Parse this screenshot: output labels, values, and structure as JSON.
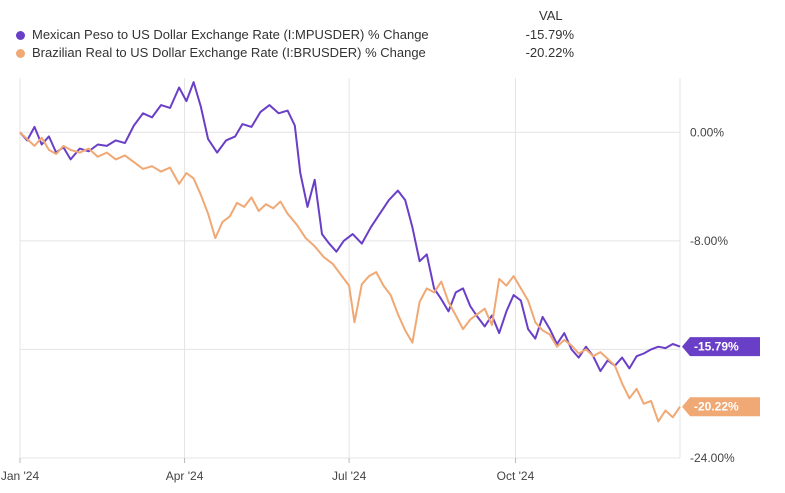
{
  "legend": {
    "value_header": "VAL",
    "items": [
      {
        "name": "Mexican Peso to US Dollar Exchange Rate (I:MPUSDER) % Change",
        "value": "-15.79%",
        "color": "#6a3fc7"
      },
      {
        "name": "Brazilian Real to US Dollar Exchange Rate (I:BRUSDER) % Change",
        "value": "-20.22%",
        "color": "#f0a874"
      }
    ]
  },
  "chart_data": {
    "type": "line",
    "x_ticks": [
      {
        "date": "2024-01-01",
        "label": "Jan '24"
      },
      {
        "date": "2024-04-01",
        "label": "Apr '24"
      },
      {
        "date": "2024-07-01",
        "label": "Jul '24"
      },
      {
        "date": "2024-10-01",
        "label": "Oct '24"
      }
    ],
    "y_ticks": [
      {
        "value": 0,
        "label": "0.00%"
      },
      {
        "value": -8,
        "label": "-8.00%"
      },
      {
        "value": -16,
        "label": "-16.00%"
      },
      {
        "value": -24,
        "label": "-24.00%"
      }
    ],
    "x_range": [
      "2024-01-01",
      "2024-12-31"
    ],
    "ylim": [
      -24,
      4
    ],
    "grid": true,
    "legend_position": "top-left",
    "series": [
      {
        "name": "Mexican Peso to US Dollar Exchange Rate (I:MPUSDER) % Change",
        "color": "#6a3fc7",
        "end_label": "-15.79%",
        "points": [
          [
            "2024-01-01",
            0
          ],
          [
            "2024-01-05",
            -0.6
          ],
          [
            "2024-01-09",
            0.4
          ],
          [
            "2024-01-13",
            -0.9
          ],
          [
            "2024-01-17",
            -0.3
          ],
          [
            "2024-01-21",
            -1.5
          ],
          [
            "2024-01-25",
            -1.1
          ],
          [
            "2024-01-29",
            -2.0
          ],
          [
            "2024-02-03",
            -1.2
          ],
          [
            "2024-02-08",
            -1.4
          ],
          [
            "2024-02-13",
            -0.9
          ],
          [
            "2024-02-18",
            -1.0
          ],
          [
            "2024-02-23",
            -0.6
          ],
          [
            "2024-02-28",
            -0.8
          ],
          [
            "2024-03-04",
            0.5
          ],
          [
            "2024-03-09",
            1.4
          ],
          [
            "2024-03-14",
            1.1
          ],
          [
            "2024-03-19",
            2.0
          ],
          [
            "2024-03-24",
            1.8
          ],
          [
            "2024-03-29",
            3.3
          ],
          [
            "2024-04-02",
            2.3
          ],
          [
            "2024-04-06",
            3.7
          ],
          [
            "2024-04-10",
            1.9
          ],
          [
            "2024-04-14",
            -0.5
          ],
          [
            "2024-04-19",
            -1.5
          ],
          [
            "2024-04-24",
            -0.6
          ],
          [
            "2024-04-29",
            -0.3
          ],
          [
            "2024-05-03",
            0.6
          ],
          [
            "2024-05-08",
            0.4
          ],
          [
            "2024-05-13",
            1.5
          ],
          [
            "2024-05-18",
            2.0
          ],
          [
            "2024-05-23",
            1.4
          ],
          [
            "2024-05-28",
            1.6
          ],
          [
            "2024-06-01",
            0.5
          ],
          [
            "2024-06-04",
            -3.0
          ],
          [
            "2024-06-08",
            -5.5
          ],
          [
            "2024-06-12",
            -3.5
          ],
          [
            "2024-06-16",
            -7.5
          ],
          [
            "2024-06-20",
            -8.2
          ],
          [
            "2024-06-24",
            -8.8
          ],
          [
            "2024-06-28",
            -8.0
          ],
          [
            "2024-07-03",
            -7.5
          ],
          [
            "2024-07-08",
            -8.2
          ],
          [
            "2024-07-13",
            -7.0
          ],
          [
            "2024-07-18",
            -6.0
          ],
          [
            "2024-07-23",
            -5.0
          ],
          [
            "2024-07-28",
            -4.3
          ],
          [
            "2024-08-01",
            -5.0
          ],
          [
            "2024-08-05",
            -7.0
          ],
          [
            "2024-08-09",
            -9.5
          ],
          [
            "2024-08-13",
            -9.0
          ],
          [
            "2024-08-17",
            -11.5
          ],
          [
            "2024-08-21",
            -12.3
          ],
          [
            "2024-08-25",
            -13.2
          ],
          [
            "2024-08-29",
            -11.8
          ],
          [
            "2024-09-02",
            -11.5
          ],
          [
            "2024-09-06",
            -12.8
          ],
          [
            "2024-09-10",
            -13.6
          ],
          [
            "2024-09-14",
            -14.3
          ],
          [
            "2024-09-18",
            -13.5
          ],
          [
            "2024-09-22",
            -14.8
          ],
          [
            "2024-09-26",
            -13.2
          ],
          [
            "2024-09-30",
            -12.0
          ],
          [
            "2024-10-04",
            -12.4
          ],
          [
            "2024-10-08",
            -14.5
          ],
          [
            "2024-10-12",
            -15.2
          ],
          [
            "2024-10-16",
            -13.6
          ],
          [
            "2024-10-20",
            -14.5
          ],
          [
            "2024-10-24",
            -15.6
          ],
          [
            "2024-10-28",
            -14.8
          ],
          [
            "2024-11-01",
            -16.0
          ],
          [
            "2024-11-05",
            -16.6
          ],
          [
            "2024-11-09",
            -15.8
          ],
          [
            "2024-11-13",
            -16.5
          ],
          [
            "2024-11-17",
            -17.6
          ],
          [
            "2024-11-21",
            -16.8
          ],
          [
            "2024-11-25",
            -17.2
          ],
          [
            "2024-11-29",
            -16.6
          ],
          [
            "2024-12-03",
            -17.4
          ],
          [
            "2024-12-07",
            -16.5
          ],
          [
            "2024-12-11",
            -16.3
          ],
          [
            "2024-12-15",
            -16.0
          ],
          [
            "2024-12-19",
            -15.8
          ],
          [
            "2024-12-23",
            -15.9
          ],
          [
            "2024-12-27",
            -15.6
          ],
          [
            "2024-12-31",
            -15.79
          ]
        ]
      },
      {
        "name": "Brazilian Real to US Dollar Exchange Rate (I:BRUSDER) % Change",
        "color": "#f0a874",
        "end_label": "-20.22%",
        "points": [
          [
            "2024-01-01",
            0
          ],
          [
            "2024-01-05",
            -0.5
          ],
          [
            "2024-01-09",
            -1.0
          ],
          [
            "2024-01-13",
            -0.4
          ],
          [
            "2024-01-17",
            -1.3
          ],
          [
            "2024-01-21",
            -1.6
          ],
          [
            "2024-01-25",
            -1.0
          ],
          [
            "2024-01-29",
            -1.3
          ],
          [
            "2024-02-03",
            -1.5
          ],
          [
            "2024-02-08",
            -1.2
          ],
          [
            "2024-02-13",
            -1.8
          ],
          [
            "2024-02-18",
            -1.5
          ],
          [
            "2024-02-23",
            -2.0
          ],
          [
            "2024-02-28",
            -1.7
          ],
          [
            "2024-03-04",
            -2.2
          ],
          [
            "2024-03-09",
            -2.7
          ],
          [
            "2024-03-14",
            -2.5
          ],
          [
            "2024-03-19",
            -2.9
          ],
          [
            "2024-03-24",
            -2.6
          ],
          [
            "2024-03-29",
            -3.8
          ],
          [
            "2024-04-02",
            -3.0
          ],
          [
            "2024-04-06",
            -3.4
          ],
          [
            "2024-04-10",
            -4.6
          ],
          [
            "2024-04-14",
            -6.0
          ],
          [
            "2024-04-18",
            -7.8
          ],
          [
            "2024-04-22",
            -6.6
          ],
          [
            "2024-04-26",
            -6.2
          ],
          [
            "2024-04-30",
            -5.2
          ],
          [
            "2024-05-04",
            -5.5
          ],
          [
            "2024-05-08",
            -4.8
          ],
          [
            "2024-05-12",
            -5.8
          ],
          [
            "2024-05-16",
            -5.3
          ],
          [
            "2024-05-20",
            -5.6
          ],
          [
            "2024-05-24",
            -5.1
          ],
          [
            "2024-05-28",
            -6.0
          ],
          [
            "2024-06-02",
            -6.8
          ],
          [
            "2024-06-07",
            -7.8
          ],
          [
            "2024-06-12",
            -8.4
          ],
          [
            "2024-06-17",
            -9.2
          ],
          [
            "2024-06-22",
            -9.7
          ],
          [
            "2024-06-27",
            -10.6
          ],
          [
            "2024-07-01",
            -11.3
          ],
          [
            "2024-07-04",
            -14.0
          ],
          [
            "2024-07-08",
            -11.2
          ],
          [
            "2024-07-12",
            -10.6
          ],
          [
            "2024-07-16",
            -10.3
          ],
          [
            "2024-07-20",
            -11.3
          ],
          [
            "2024-07-24",
            -12.0
          ],
          [
            "2024-07-28",
            -13.4
          ],
          [
            "2024-08-01",
            -14.6
          ],
          [
            "2024-08-05",
            -15.5
          ],
          [
            "2024-08-09",
            -12.5
          ],
          [
            "2024-08-13",
            -11.5
          ],
          [
            "2024-08-17",
            -11.8
          ],
          [
            "2024-08-21",
            -11.0
          ],
          [
            "2024-08-25",
            -12.5
          ],
          [
            "2024-08-29",
            -13.5
          ],
          [
            "2024-09-02",
            -14.5
          ],
          [
            "2024-09-06",
            -13.8
          ],
          [
            "2024-09-10",
            -13.4
          ],
          [
            "2024-09-14",
            -13.0
          ],
          [
            "2024-09-18",
            -14.2
          ],
          [
            "2024-09-22",
            -10.8
          ],
          [
            "2024-09-26",
            -11.3
          ],
          [
            "2024-09-30",
            -10.6
          ],
          [
            "2024-10-04",
            -11.5
          ],
          [
            "2024-10-08",
            -12.4
          ],
          [
            "2024-10-12",
            -14.0
          ],
          [
            "2024-10-16",
            -14.6
          ],
          [
            "2024-10-20",
            -14.9
          ],
          [
            "2024-10-24",
            -15.8
          ],
          [
            "2024-10-28",
            -15.3
          ],
          [
            "2024-11-01",
            -15.7
          ],
          [
            "2024-11-05",
            -16.3
          ],
          [
            "2024-11-09",
            -16.0
          ],
          [
            "2024-11-13",
            -16.5
          ],
          [
            "2024-11-17",
            -16.2
          ],
          [
            "2024-11-21",
            -16.7
          ],
          [
            "2024-11-25",
            -17.2
          ],
          [
            "2024-11-29",
            -18.5
          ],
          [
            "2024-12-03",
            -19.6
          ],
          [
            "2024-12-07",
            -18.9
          ],
          [
            "2024-12-11",
            -20.0
          ],
          [
            "2024-12-15",
            -19.8
          ],
          [
            "2024-12-19",
            -21.3
          ],
          [
            "2024-12-23",
            -20.5
          ],
          [
            "2024-12-27",
            -21.0
          ],
          [
            "2024-12-31",
            -20.22
          ]
        ]
      }
    ]
  }
}
